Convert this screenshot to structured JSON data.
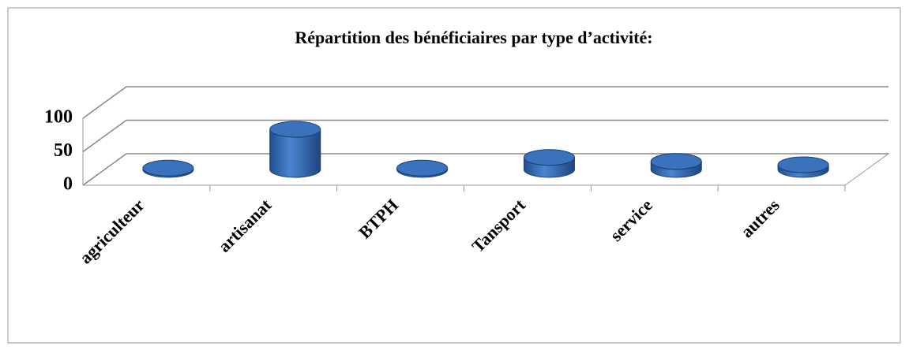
{
  "chart_data": {
    "type": "bar3d",
    "title": "Répartition des bénéficiaires par type d’activité:",
    "categories": [
      "agriculteur",
      "artisanat",
      "BTPH",
      "Tansport",
      "service",
      "autres"
    ],
    "values": [
      2,
      60,
      2,
      18,
      12,
      7
    ],
    "color": "#3a6fb5",
    "ylim": [
      0,
      100
    ],
    "yticks": [
      0,
      50,
      100
    ],
    "grid": true
  }
}
